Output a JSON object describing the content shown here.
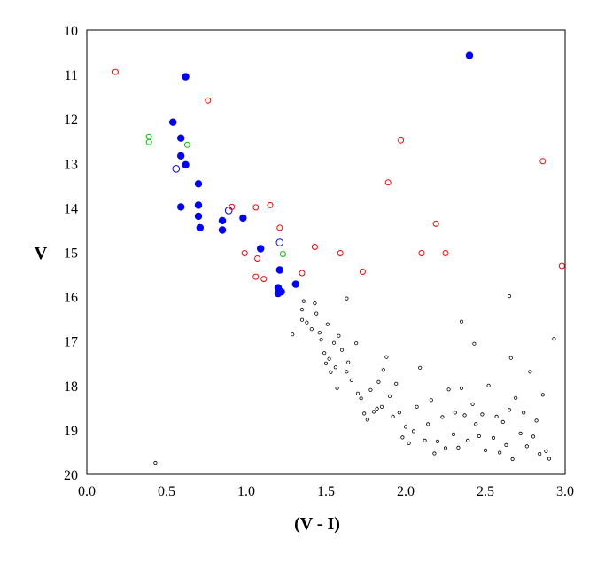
{
  "chart_data": {
    "type": "scatter",
    "title": "",
    "xlabel": "(V - I)",
    "ylabel": "V",
    "xlim": [
      0.0,
      3.0
    ],
    "ylim": [
      10,
      20
    ],
    "y_inverted": true,
    "grid": false,
    "x_ticks": [
      "0.0",
      "0.5",
      "1.0",
      "1.5",
      "2.0",
      "2.5",
      "3.0"
    ],
    "y_ticks": [
      "10",
      "11",
      "12",
      "13",
      "14",
      "15",
      "16",
      "17",
      "18",
      "19",
      "20"
    ],
    "series": [
      {
        "color": "#0000ff",
        "marker": "filled-circle",
        "points": [
          [
            0.62,
            11.05
          ],
          [
            2.4,
            10.57
          ],
          [
            0.54,
            12.07
          ],
          [
            0.59,
            12.43
          ],
          [
            0.59,
            12.83
          ],
          [
            0.62,
            13.03
          ],
          [
            0.7,
            13.46
          ],
          [
            0.59,
            13.98
          ],
          [
            0.7,
            13.94
          ],
          [
            0.7,
            14.19
          ],
          [
            0.71,
            14.45
          ],
          [
            0.85,
            14.29
          ],
          [
            0.85,
            14.5
          ],
          [
            0.98,
            14.23
          ],
          [
            1.09,
            14.92
          ],
          [
            1.21,
            15.4
          ],
          [
            1.31,
            15.72
          ],
          [
            1.2,
            15.8
          ],
          [
            1.2,
            15.93
          ],
          [
            1.22,
            15.89
          ]
        ]
      },
      {
        "color": "#0000ff",
        "marker": "open-circle",
        "points": [
          [
            0.56,
            13.12
          ],
          [
            0.89,
            14.06
          ],
          [
            1.21,
            14.78
          ]
        ]
      },
      {
        "color": "#00c000",
        "marker": "open-circle",
        "points": [
          [
            0.39,
            12.4
          ],
          [
            0.39,
            12.52
          ],
          [
            0.63,
            12.58
          ],
          [
            1.23,
            15.04
          ]
        ]
      },
      {
        "color": "#ff0000",
        "marker": "open-circle",
        "points": [
          [
            0.18,
            10.94
          ],
          [
            0.76,
            11.58
          ],
          [
            0.91,
            13.98
          ],
          [
            1.06,
            13.99
          ],
          [
            1.15,
            13.94
          ],
          [
            1.21,
            14.45
          ],
          [
            0.99,
            15.02
          ],
          [
            1.07,
            15.14
          ],
          [
            1.06,
            15.55
          ],
          [
            1.11,
            15.6
          ],
          [
            1.35,
            15.47
          ],
          [
            1.43,
            14.88
          ],
          [
            1.59,
            15.02
          ],
          [
            1.73,
            15.44
          ],
          [
            1.89,
            13.43
          ],
          [
            1.97,
            12.48
          ],
          [
            2.1,
            15.02
          ],
          [
            2.19,
            14.36
          ],
          [
            2.25,
            15.02
          ],
          [
            2.86,
            12.95
          ],
          [
            2.98,
            15.31
          ]
        ]
      },
      {
        "color": "#000000",
        "marker": "small-open-circle",
        "points": [
          [
            0.43,
            19.74
          ],
          [
            1.29,
            16.85
          ],
          [
            1.35,
            16.52
          ],
          [
            1.36,
            16.1
          ],
          [
            1.35,
            16.29
          ],
          [
            1.38,
            16.58
          ],
          [
            1.41,
            16.73
          ],
          [
            1.43,
            16.15
          ],
          [
            1.44,
            16.38
          ],
          [
            1.46,
            16.81
          ],
          [
            1.47,
            16.97
          ],
          [
            1.49,
            17.27
          ],
          [
            1.5,
            17.5
          ],
          [
            1.52,
            17.4
          ],
          [
            1.55,
            17.04
          ],
          [
            1.56,
            17.59
          ],
          [
            1.58,
            16.88
          ],
          [
            1.6,
            17.2
          ],
          [
            1.63,
            16.04
          ],
          [
            1.64,
            17.48
          ],
          [
            1.66,
            17.88
          ],
          [
            1.7,
            18.18
          ],
          [
            1.72,
            18.29
          ],
          [
            1.74,
            18.63
          ],
          [
            1.76,
            18.77
          ],
          [
            1.78,
            18.1
          ],
          [
            1.8,
            18.59
          ],
          [
            1.82,
            18.52
          ],
          [
            1.83,
            17.92
          ],
          [
            1.85,
            18.48
          ],
          [
            1.86,
            17.65
          ],
          [
            1.88,
            17.36
          ],
          [
            1.9,
            18.24
          ],
          [
            1.92,
            18.7
          ],
          [
            1.94,
            17.96
          ],
          [
            1.96,
            18.61
          ],
          [
            1.98,
            19.17
          ],
          [
            2.0,
            18.93
          ],
          [
            2.02,
            19.3
          ],
          [
            2.05,
            19.03
          ],
          [
            2.07,
            18.48
          ],
          [
            2.09,
            17.6
          ],
          [
            2.12,
            19.24
          ],
          [
            2.14,
            18.87
          ],
          [
            2.16,
            18.33
          ],
          [
            2.18,
            19.53
          ],
          [
            2.2,
            19.26
          ],
          [
            2.23,
            18.71
          ],
          [
            2.25,
            19.41
          ],
          [
            2.27,
            18.09
          ],
          [
            2.3,
            19.1
          ],
          [
            2.31,
            18.61
          ],
          [
            2.33,
            19.4
          ],
          [
            2.35,
            18.06
          ],
          [
            2.37,
            18.67
          ],
          [
            2.39,
            19.24
          ],
          [
            2.42,
            18.42
          ],
          [
            2.44,
            18.87
          ],
          [
            2.46,
            19.14
          ],
          [
            2.48,
            18.65
          ],
          [
            2.5,
            19.46
          ],
          [
            2.52,
            18.0
          ],
          [
            2.55,
            19.18
          ],
          [
            2.57,
            18.7
          ],
          [
            2.59,
            19.51
          ],
          [
            2.61,
            18.82
          ],
          [
            2.63,
            19.34
          ],
          [
            2.65,
            18.55
          ],
          [
            2.67,
            19.66
          ],
          [
            2.69,
            18.28
          ],
          [
            2.72,
            19.08
          ],
          [
            2.74,
            18.61
          ],
          [
            2.76,
            19.37
          ],
          [
            2.78,
            17.69
          ],
          [
            2.8,
            19.15
          ],
          [
            2.82,
            18.79
          ],
          [
            2.84,
            19.54
          ],
          [
            2.86,
            18.21
          ],
          [
            2.88,
            19.48
          ],
          [
            2.9,
            19.65
          ],
          [
            2.93,
            16.95
          ],
          [
            2.65,
            15.99
          ],
          [
            2.66,
            17.38
          ],
          [
            2.43,
            17.06
          ],
          [
            2.35,
            16.56
          ],
          [
            1.63,
            17.69
          ],
          [
            1.69,
            17.05
          ],
          [
            1.57,
            18.06
          ],
          [
            1.53,
            17.7
          ],
          [
            1.51,
            16.62
          ]
        ]
      }
    ]
  }
}
